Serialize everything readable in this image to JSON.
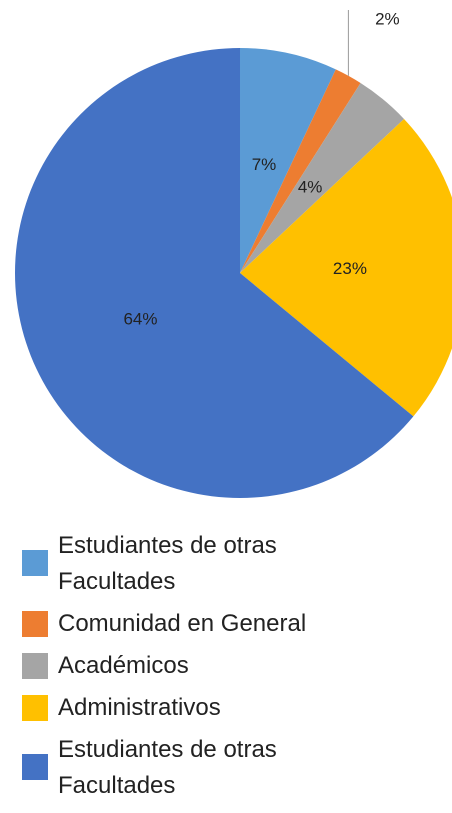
{
  "chart_data": {
    "type": "pie",
    "categories": [
      "Estudiantes de otras Facultades",
      "Comunidad en General",
      "Académicos",
      "Administrativos",
      "Estudiantes de otras Facultades"
    ],
    "values": [
      7,
      2,
      4,
      23,
      64
    ],
    "value_labels": [
      "7%",
      "2%",
      "4%",
      "23%",
      "64%"
    ],
    "colors": [
      "#5b9bd5",
      "#ed7d31",
      "#a5a5a5",
      "#ffc000",
      "#4472c4"
    ]
  }
}
